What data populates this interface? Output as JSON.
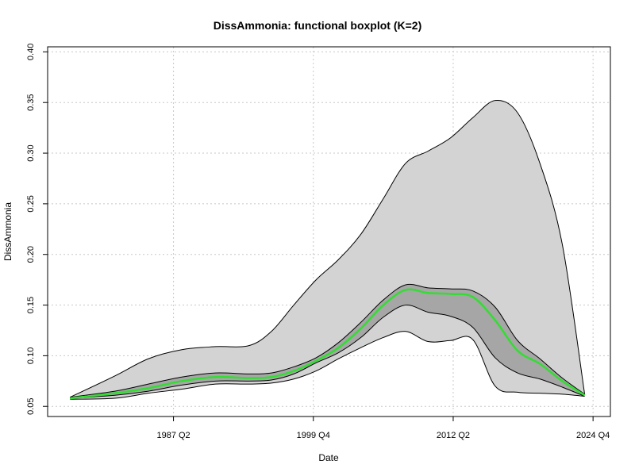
{
  "chart_data": {
    "type": "area",
    "title": "DissAmmonia: functional boxplot (K=2)",
    "xlabel": "Date",
    "ylabel": "DissAmmonia",
    "x_tick_labels": [
      "1987 Q2",
      "1999 Q4",
      "2012 Q2",
      "2024 Q4"
    ],
    "x_tick_values": [
      1987.25,
      1999.75,
      2012.25,
      2024.75
    ],
    "xlim": [
      1976.0,
      2026.3
    ],
    "ylim": [
      0.04,
      0.405
    ],
    "y_ticks": [
      0.05,
      0.1,
      0.15,
      0.2,
      0.25,
      0.3,
      0.35,
      0.4
    ],
    "y_tick_labels": [
      "0.05",
      "0.10",
      "0.15",
      "0.20",
      "0.25",
      "0.30",
      "0.35",
      "0.40"
    ],
    "grid": true,
    "x": [
      1978.0,
      1982.0,
      1985.0,
      1988.0,
      1991.0,
      1994.0,
      1996.0,
      1998.0,
      2000.0,
      2002.0,
      2004.0,
      2006.0,
      2008.0,
      2010.0,
      2012.0,
      2014.0,
      2016.0,
      2018.0,
      2020.0,
      2022.0,
      2024.0
    ],
    "series": [
      {
        "role": "envelope_upper",
        "color": "#000000",
        "values": [
          0.059,
          0.08,
          0.097,
          0.106,
          0.109,
          0.11,
          0.124,
          0.15,
          0.175,
          0.195,
          0.22,
          0.255,
          0.29,
          0.302,
          0.315,
          0.335,
          0.352,
          0.34,
          0.29,
          0.21,
          0.062
        ]
      },
      {
        "role": "envelope_lower",
        "color": "#000000",
        "values": [
          0.057,
          0.058,
          0.063,
          0.067,
          0.072,
          0.072,
          0.073,
          0.077,
          0.085,
          0.097,
          0.108,
          0.118,
          0.124,
          0.114,
          0.115,
          0.116,
          0.07,
          0.064,
          0.063,
          0.062,
          0.06
        ]
      },
      {
        "role": "central_upper",
        "color": "#000000",
        "values": [
          0.059,
          0.065,
          0.072,
          0.079,
          0.083,
          0.082,
          0.083,
          0.089,
          0.098,
          0.113,
          0.133,
          0.155,
          0.17,
          0.167,
          0.166,
          0.164,
          0.148,
          0.115,
          0.097,
          0.078,
          0.062
        ]
      },
      {
        "role": "central_lower",
        "color": "#000000",
        "values": [
          0.058,
          0.061,
          0.065,
          0.071,
          0.075,
          0.075,
          0.076,
          0.082,
          0.093,
          0.103,
          0.118,
          0.138,
          0.15,
          0.143,
          0.139,
          0.128,
          0.098,
          0.083,
          0.077,
          0.069,
          0.06
        ]
      },
      {
        "role": "median",
        "color": "#33dd33",
        "values": [
          0.058,
          0.063,
          0.068,
          0.075,
          0.079,
          0.078,
          0.079,
          0.085,
          0.095,
          0.108,
          0.127,
          0.15,
          0.165,
          0.162,
          0.161,
          0.158,
          0.135,
          0.105,
          0.092,
          0.075,
          0.061
        ]
      }
    ],
    "colors": {
      "outer_band": "#d3d3d3",
      "inner_band": "#a6a6a6",
      "median": "#33dd33",
      "outline": "#000000"
    }
  }
}
